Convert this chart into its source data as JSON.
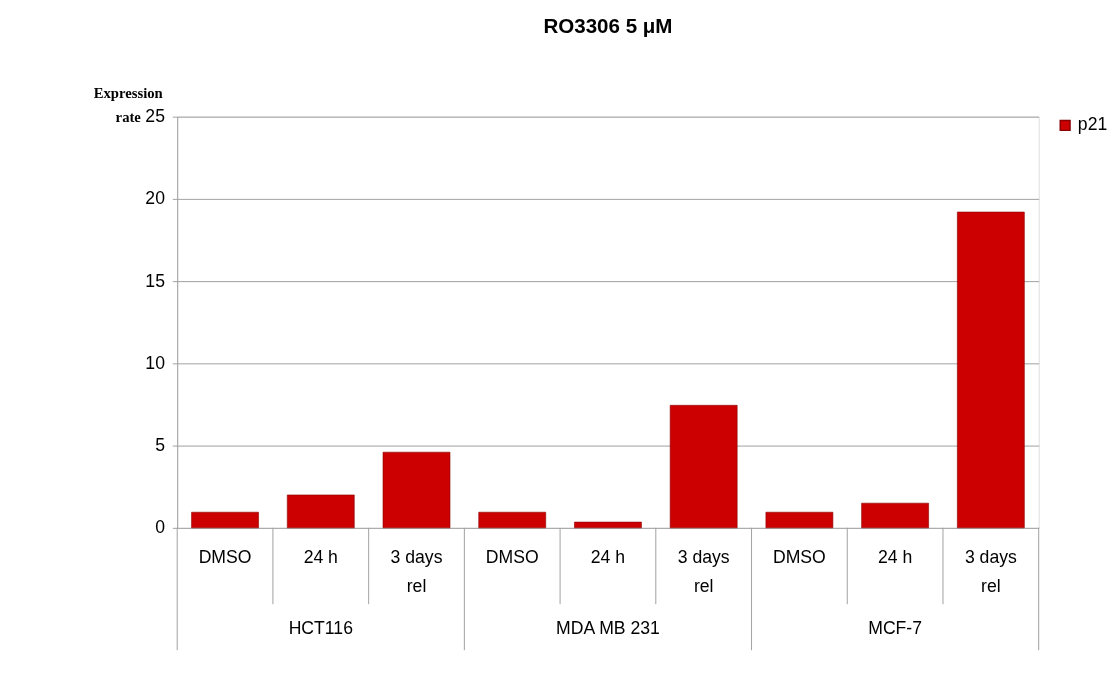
{
  "chart_data": {
    "type": "bar",
    "title": "RO3306 5 μM",
    "ylabel": "Expression rate",
    "categories": [
      "DMSO",
      "24 h",
      "3 days rel",
      "DMSO",
      "24 h",
      "3 days rel",
      "DMSO",
      "24 h",
      "3 days rel"
    ],
    "annotations": [
      "HCT116",
      "MDA MB 231",
      "MCF-7"
    ],
    "series": [
      {
        "name": "p21",
        "color": "#cc0000",
        "values": [
          0.95,
          2.0,
          4.6,
          0.95,
          0.35,
          7.45,
          0.95,
          1.5,
          19.2
        ]
      }
    ],
    "ylim": [
      0,
      25
    ],
    "yticks": [
      0,
      5,
      10,
      15,
      20,
      25
    ],
    "grid": "y",
    "legend": "right"
  }
}
